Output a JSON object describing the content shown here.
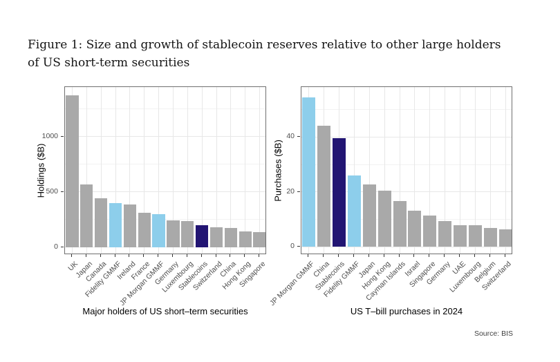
{
  "title": {
    "line1": "Figure 1: Size and growth of stablecoin reserves relative to other large holders",
    "line2": "of US short-term securities"
  },
  "source": "Source: BIS",
  "palette": {
    "gray": "#a9a9a9",
    "light_blue": "#8dceeb",
    "navy": "#221573"
  },
  "chart_data": [
    {
      "type": "bar",
      "title": "",
      "xlabel": "Major holders of US short–term securities",
      "ylabel": "Holdings ($B)",
      "categories": [
        "UK",
        "Japan",
        "Canada",
        "Fidelity GMMF",
        "Ireland",
        "France",
        "JP Morgan GMMF",
        "Germany",
        "Luxembourg",
        "Stablecoins",
        "Switzerland",
        "China",
        "Hong Kong",
        "Singapore"
      ],
      "values": [
        1370,
        565,
        440,
        400,
        385,
        310,
        297,
        245,
        235,
        196,
        180,
        172,
        145,
        138
      ],
      "bar_colors": [
        "gray",
        "gray",
        "gray",
        "light_blue",
        "gray",
        "gray",
        "light_blue",
        "gray",
        "gray",
        "navy",
        "gray",
        "gray",
        "gray",
        "gray"
      ],
      "yticks": [
        0,
        500,
        1000
      ],
      "minor_gridlines": [
        250,
        750,
        1250
      ],
      "ylim": [
        -70,
        1448
      ],
      "grid": "on",
      "legend": "none"
    },
    {
      "type": "bar",
      "title": "",
      "xlabel": "US T–bill purchases in 2024",
      "ylabel": "Purchases ($B)",
      "categories": [
        "JP Morgan GMMF",
        "China",
        "Stablecoins",
        "Fidelity GMMF",
        "Japan",
        "Hong Kong",
        "Cayman Islands",
        "Israel",
        "Singapore",
        "Germany",
        "UAE",
        "Luxembourg",
        "Belgium",
        "Switzerland"
      ],
      "values": [
        54.5,
        44,
        39.5,
        26,
        22.8,
        20.5,
        16.8,
        13.2,
        11.5,
        9.5,
        8,
        7.8,
        7,
        6.4
      ],
      "bar_colors": [
        "light_blue",
        "gray",
        "navy",
        "light_blue",
        "gray",
        "gray",
        "gray",
        "gray",
        "gray",
        "gray",
        "gray",
        "gray",
        "gray",
        "gray"
      ],
      "yticks": [
        0,
        20,
        40
      ],
      "minor_gridlines": [
        10,
        30,
        50
      ],
      "ylim": [
        -2.9,
        58.2
      ],
      "grid": "on",
      "legend": "none"
    }
  ]
}
